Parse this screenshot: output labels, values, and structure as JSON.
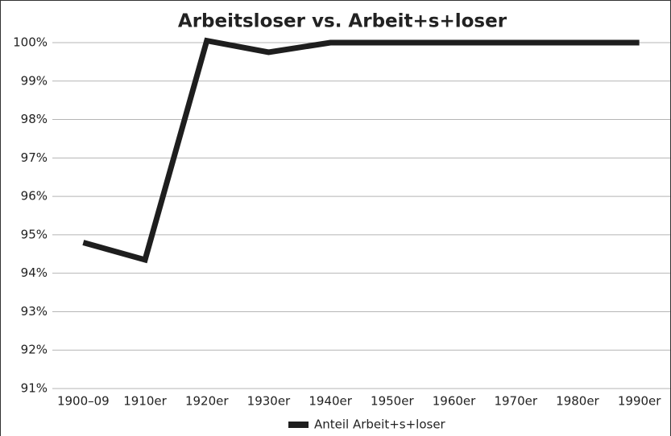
{
  "chart_data": {
    "type": "line",
    "title": "Arbeitsloser vs. Arbeit+s+loser",
    "categories": [
      "1900–09",
      "1910er",
      "1920er",
      "1930er",
      "1940er",
      "1950er",
      "1960er",
      "1970er",
      "1980er",
      "1990er"
    ],
    "series": [
      {
        "name": "Anteil Arbeit+s+loser",
        "color": "#1e1e1e",
        "values": [
          94.8,
          94.35,
          100.05,
          99.75,
          100,
          100,
          100,
          100,
          100,
          100
        ]
      }
    ],
    "ylim": [
      91,
      100
    ],
    "yticks": [
      {
        "value": 91,
        "label": "91%"
      },
      {
        "value": 92,
        "label": "92%"
      },
      {
        "value": 93,
        "label": "93%"
      },
      {
        "value": 94,
        "label": "94%"
      },
      {
        "value": 95,
        "label": "95%"
      },
      {
        "value": 96,
        "label": "96%"
      },
      {
        "value": 97,
        "label": "97%"
      },
      {
        "value": 98,
        "label": "98%"
      },
      {
        "value": 99,
        "label": "99%"
      },
      {
        "value": 100,
        "label": "100%"
      }
    ],
    "grid": true,
    "legend": "bottom"
  }
}
